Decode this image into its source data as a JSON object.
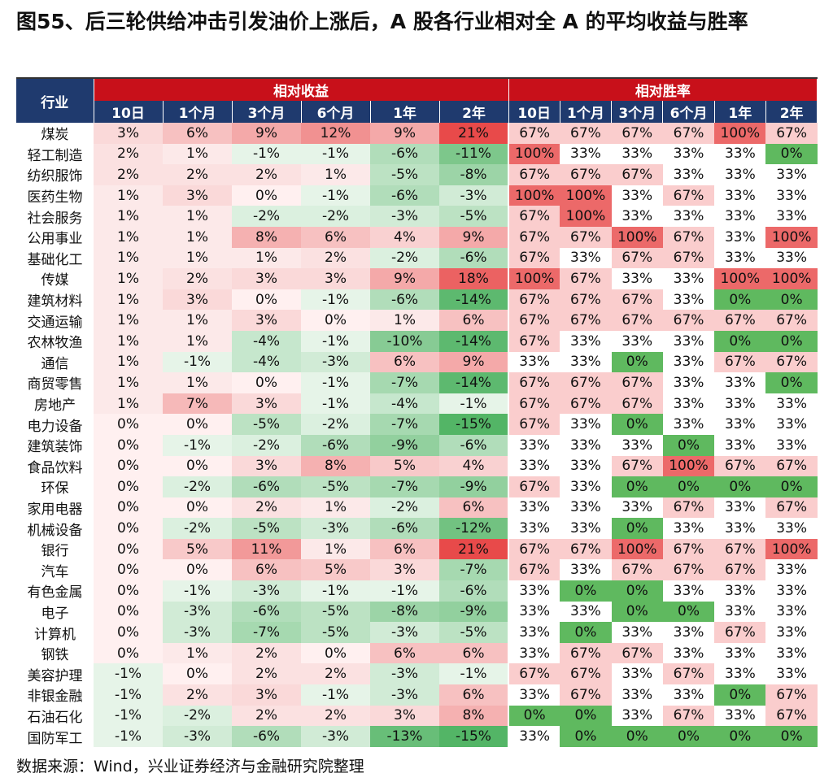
{
  "title": "图55、后三轮供给冲击引发油价上涨后，A 股各行业相对全 A 的平均收益与胜率",
  "table": {
    "header": {
      "industry": "行业",
      "groups": [
        "相对收益",
        "相对胜率"
      ],
      "return_columns": [
        "10日",
        "1个月",
        "3个月",
        "6个月",
        "1年",
        "2年"
      ],
      "win_columns": [
        "10日",
        "1个月",
        "3个月",
        "6个月",
        "1年",
        "2年"
      ]
    },
    "rows": [
      {
        "name": "煤炭",
        "returns": [
          "3%",
          "6%",
          "9%",
          "12%",
          "9%",
          "21%"
        ],
        "win": [
          "67%",
          "67%",
          "67%",
          "67%",
          "100%",
          "67%"
        ]
      },
      {
        "name": "轻工制造",
        "returns": [
          "2%",
          "1%",
          "-1%",
          "-1%",
          "-6%",
          "-11%"
        ],
        "win": [
          "100%",
          "33%",
          "33%",
          "33%",
          "33%",
          "0%"
        ]
      },
      {
        "name": "纺织服饰",
        "returns": [
          "2%",
          "2%",
          "2%",
          "1%",
          "-5%",
          "-8%"
        ],
        "win": [
          "67%",
          "67%",
          "67%",
          "33%",
          "33%",
          "33%"
        ]
      },
      {
        "name": "医药生物",
        "returns": [
          "1%",
          "3%",
          "0%",
          "-1%",
          "-6%",
          "-3%"
        ],
        "win": [
          "100%",
          "100%",
          "33%",
          "67%",
          "33%",
          "33%"
        ]
      },
      {
        "name": "社会服务",
        "returns": [
          "1%",
          "1%",
          "-2%",
          "-2%",
          "-3%",
          "-5%"
        ],
        "win": [
          "67%",
          "100%",
          "33%",
          "33%",
          "33%",
          "33%"
        ]
      },
      {
        "name": "公用事业",
        "returns": [
          "1%",
          "1%",
          "8%",
          "6%",
          "4%",
          "9%"
        ],
        "win": [
          "67%",
          "67%",
          "100%",
          "67%",
          "33%",
          "100%"
        ]
      },
      {
        "name": "基础化工",
        "returns": [
          "1%",
          "1%",
          "1%",
          "2%",
          "-2%",
          "-6%"
        ],
        "win": [
          "67%",
          "33%",
          "67%",
          "67%",
          "33%",
          "33%"
        ]
      },
      {
        "name": "传媒",
        "returns": [
          "1%",
          "2%",
          "3%",
          "3%",
          "9%",
          "18%"
        ],
        "win": [
          "100%",
          "67%",
          "33%",
          "33%",
          "100%",
          "100%"
        ]
      },
      {
        "name": "建筑材料",
        "returns": [
          "1%",
          "3%",
          "0%",
          "-1%",
          "-6%",
          "-14%"
        ],
        "win": [
          "67%",
          "67%",
          "67%",
          "33%",
          "0%",
          "0%"
        ]
      },
      {
        "name": "交通运输",
        "returns": [
          "1%",
          "1%",
          "3%",
          "0%",
          "1%",
          "6%"
        ],
        "win": [
          "67%",
          "67%",
          "67%",
          "67%",
          "67%",
          "67%"
        ]
      },
      {
        "name": "农林牧渔",
        "returns": [
          "1%",
          "1%",
          "-4%",
          "-1%",
          "-10%",
          "-14%"
        ],
        "win": [
          "67%",
          "33%",
          "33%",
          "33%",
          "0%",
          "0%"
        ]
      },
      {
        "name": "通信",
        "returns": [
          "1%",
          "-1%",
          "-4%",
          "-3%",
          "6%",
          "9%"
        ],
        "win": [
          "33%",
          "33%",
          "0%",
          "33%",
          "67%",
          "67%"
        ]
      },
      {
        "name": "商贸零售",
        "returns": [
          "1%",
          "1%",
          "0%",
          "-1%",
          "-7%",
          "-14%"
        ],
        "win": [
          "67%",
          "67%",
          "67%",
          "33%",
          "33%",
          "0%"
        ]
      },
      {
        "name": "房地产",
        "returns": [
          "1%",
          "7%",
          "3%",
          "-1%",
          "-4%",
          "-1%"
        ],
        "win": [
          "67%",
          "67%",
          "67%",
          "33%",
          "33%",
          "33%"
        ]
      },
      {
        "name": "电力设备",
        "returns": [
          "0%",
          "0%",
          "-5%",
          "-2%",
          "-7%",
          "-15%"
        ],
        "win": [
          "67%",
          "33%",
          "0%",
          "33%",
          "33%",
          "33%"
        ]
      },
      {
        "name": "建筑装饰",
        "returns": [
          "0%",
          "-1%",
          "-2%",
          "-6%",
          "-9%",
          "-6%"
        ],
        "win": [
          "33%",
          "33%",
          "33%",
          "0%",
          "33%",
          "33%"
        ]
      },
      {
        "name": "食品饮料",
        "returns": [
          "0%",
          "0%",
          "3%",
          "8%",
          "5%",
          "4%"
        ],
        "win": [
          "33%",
          "33%",
          "67%",
          "100%",
          "67%",
          "67%"
        ]
      },
      {
        "name": "环保",
        "returns": [
          "0%",
          "-2%",
          "-6%",
          "-5%",
          "-7%",
          "-9%"
        ],
        "win": [
          "67%",
          "33%",
          "0%",
          "0%",
          "0%",
          "0%"
        ]
      },
      {
        "name": "家用电器",
        "returns": [
          "0%",
          "0%",
          "2%",
          "1%",
          "-2%",
          "6%"
        ],
        "win": [
          "33%",
          "33%",
          "33%",
          "67%",
          "33%",
          "67%"
        ]
      },
      {
        "name": "机械设备",
        "returns": [
          "0%",
          "-2%",
          "-5%",
          "-3%",
          "-6%",
          "-12%"
        ],
        "win": [
          "33%",
          "33%",
          "0%",
          "33%",
          "33%",
          "33%"
        ]
      },
      {
        "name": "银行",
        "returns": [
          "0%",
          "5%",
          "11%",
          "1%",
          "6%",
          "21%"
        ],
        "win": [
          "67%",
          "67%",
          "100%",
          "67%",
          "67%",
          "100%"
        ]
      },
      {
        "name": "汽车",
        "returns": [
          "0%",
          "0%",
          "6%",
          "5%",
          "3%",
          "-7%"
        ],
        "win": [
          "67%",
          "33%",
          "67%",
          "67%",
          "67%",
          "33%"
        ]
      },
      {
        "name": "有色金属",
        "returns": [
          "0%",
          "-1%",
          "-3%",
          "-1%",
          "-1%",
          "-6%"
        ],
        "win": [
          "33%",
          "0%",
          "0%",
          "33%",
          "33%",
          "33%"
        ]
      },
      {
        "name": "电子",
        "returns": [
          "0%",
          "-3%",
          "-6%",
          "-5%",
          "-8%",
          "-9%"
        ],
        "win": [
          "33%",
          "33%",
          "0%",
          "0%",
          "33%",
          "33%"
        ]
      },
      {
        "name": "计算机",
        "returns": [
          "0%",
          "-3%",
          "-7%",
          "-5%",
          "-3%",
          "-5%"
        ],
        "win": [
          "33%",
          "0%",
          "33%",
          "33%",
          "67%",
          "33%"
        ]
      },
      {
        "name": "钢铁",
        "returns": [
          "0%",
          "1%",
          "2%",
          "0%",
          "6%",
          "6%"
        ],
        "win": [
          "33%",
          "67%",
          "67%",
          "33%",
          "33%",
          "33%"
        ]
      },
      {
        "name": "美容护理",
        "returns": [
          "-1%",
          "0%",
          "2%",
          "2%",
          "-3%",
          "-1%"
        ],
        "win": [
          "67%",
          "67%",
          "33%",
          "67%",
          "33%",
          "33%"
        ]
      },
      {
        "name": "非银金融",
        "returns": [
          "-1%",
          "2%",
          "3%",
          "-1%",
          "-3%",
          "6%"
        ],
        "win": [
          "33%",
          "67%",
          "33%",
          "33%",
          "0%",
          "67%"
        ]
      },
      {
        "name": "石油石化",
        "returns": [
          "-1%",
          "-2%",
          "2%",
          "2%",
          "3%",
          "8%"
        ],
        "win": [
          "0%",
          "0%",
          "33%",
          "67%",
          "33%",
          "67%"
        ]
      },
      {
        "name": "国防军工",
        "returns": [
          "-1%",
          "-3%",
          "-6%",
          "-3%",
          "-13%",
          "-15%"
        ],
        "win": [
          "33%",
          "0%",
          "0%",
          "0%",
          "0%",
          "0%"
        ]
      }
    ]
  },
  "source": "数据来源：Wind，兴业证券经济与金融研究院整理"
}
